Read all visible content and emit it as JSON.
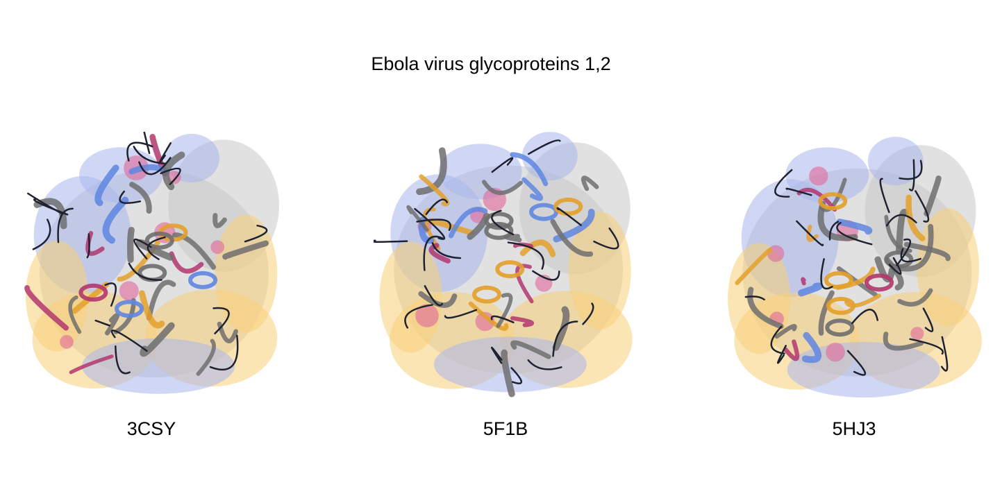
{
  "figure": {
    "title": "Ebola virus glycoproteins 1,2"
  },
  "panels": [
    {
      "label": "3CSY"
    },
    {
      "label": "5F1B"
    },
    {
      "label": "5HJ3"
    }
  ],
  "colors": {
    "surface_gray": "#c8c8c8",
    "surface_blue": "#a9b7ec",
    "surface_orange": "#f7cf79",
    "surface_magenta": "#e0689a",
    "cartoon_gray": "#6e6e6e",
    "cartoon_orange": "#e3a02a",
    "cartoon_blue": "#5f86e0",
    "cartoon_magenta": "#b3366e",
    "loop_dark": "#1e2230"
  }
}
